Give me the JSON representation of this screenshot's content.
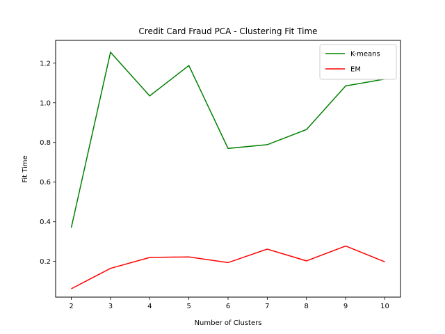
{
  "chart_data": {
    "type": "line",
    "title": "Credit Card Fraud PCA - Clustering Fit Time",
    "xlabel": "Number of Clusters",
    "ylabel": "Fit Time",
    "x": [
      2,
      3,
      4,
      5,
      6,
      7,
      8,
      9,
      10
    ],
    "xlim": [
      1.6,
      10.4
    ],
    "ylim": [
      0.02,
      1.315
    ],
    "xticks": [
      2,
      3,
      4,
      5,
      6,
      7,
      8,
      9,
      10
    ],
    "yticks": [
      0.2,
      0.4,
      0.6,
      0.8,
      1.0,
      1.2
    ],
    "ytick_labels": [
      "0.2",
      "0.4",
      "0.6",
      "0.8",
      "1.0",
      "1.2"
    ],
    "grid": false,
    "legend_position": "top-right",
    "series": [
      {
        "name": "K-means",
        "color": "#008000",
        "values": [
          0.37,
          1.255,
          1.035,
          1.188,
          0.77,
          0.789,
          0.865,
          1.085,
          1.12
        ]
      },
      {
        "name": "EM",
        "color": "#ff0000",
        "values": [
          0.062,
          0.165,
          0.22,
          0.223,
          0.194,
          0.262,
          0.203,
          0.278,
          0.198
        ]
      }
    ]
  }
}
